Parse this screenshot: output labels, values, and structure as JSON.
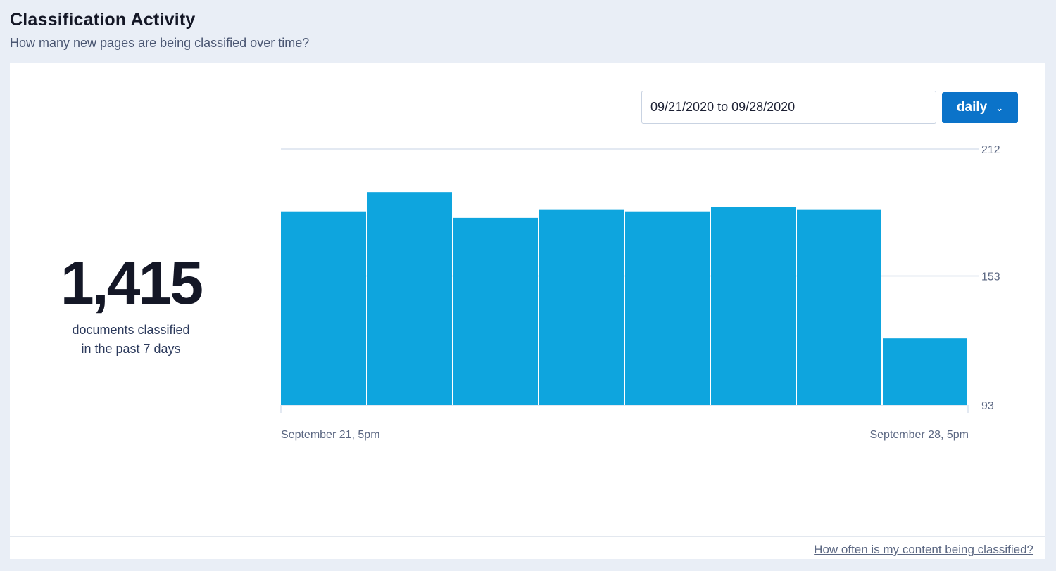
{
  "header": {
    "title": "Classification Activity",
    "subtitle": "How many new pages are being classified over time?"
  },
  "summary": {
    "value": "1,415",
    "caption_line1": "documents classified",
    "caption_line2": "in the past 7 days"
  },
  "controls": {
    "date_range": "09/21/2020 to 09/28/2020",
    "interval_label": "daily",
    "interval_icon": "chevron-down-icon"
  },
  "footer": {
    "help_link": "How often is my content being classified?"
  },
  "colors": {
    "bar": "#0ea5de",
    "accent_button": "#0b73c9",
    "background": "#e9eef6"
  },
  "chart_data": {
    "type": "bar",
    "title": "",
    "xlabel": "",
    "ylabel": "",
    "ylim": [
      93,
      212
    ],
    "yticks": [
      93,
      153,
      212
    ],
    "x_tick_labels": [
      "September 21, 5pm",
      "September 28, 5pm"
    ],
    "values": [
      183,
      192,
      180,
      184,
      183,
      185,
      184,
      124
    ],
    "grid": true,
    "legend": "none"
  }
}
